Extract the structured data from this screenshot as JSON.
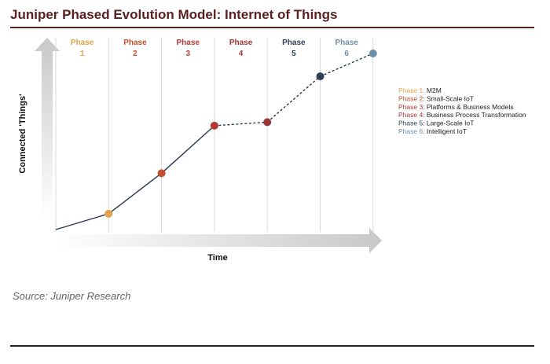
{
  "title": "Juniper Phased Evolution Model: Internet of Things",
  "source": "Source: Juniper Research",
  "colors": {
    "title": "#5a1f1f",
    "phase1": "#e0a24c",
    "phase2": "#c0502e",
    "phase3": "#b23a32",
    "phase4": "#9c3535",
    "phase5": "#2f3f55",
    "phase6": "#6e8fa6"
  },
  "chart_data": {
    "type": "line",
    "xlabel": "Time",
    "ylabel": "Connected 'Things'",
    "grid": true,
    "legend_position": "right",
    "phases": [
      {
        "label": "Phase",
        "number": "1",
        "legend_prefix": "Phase 1:",
        "legend_name": "M2M",
        "color": "#e0a24c"
      },
      {
        "label": "Phase",
        "number": "2",
        "legend_prefix": "Phase 2:",
        "legend_name": "Small-Scale IoT",
        "color": "#c0502e"
      },
      {
        "label": "Phase",
        "number": "3",
        "legend_prefix": "Phase 3:",
        "legend_name": "Platforms & Business Models",
        "color": "#b23a32"
      },
      {
        "label": "Phase",
        "number": "4",
        "legend_prefix": "Phase 4:",
        "legend_name": "Business Process Transformation",
        "color": "#9c3535"
      },
      {
        "label": "Phase",
        "number": "5",
        "legend_prefix": "Phase 5:",
        "legend_name": "Large-Scale IoT",
        "color": "#2f3f55"
      },
      {
        "label": "Phase",
        "number": "6",
        "legend_prefix": "Phase 6:",
        "legend_name": "Intelligent IoT",
        "color": "#6e8fa6"
      }
    ],
    "x": [
      0,
      1,
      2,
      3,
      4,
      5,
      6
    ],
    "y": [
      0,
      0.09,
      0.32,
      0.59,
      0.61,
      0.87,
      1.0
    ],
    "solid_until_index": 3,
    "marker_color_index": [
      null,
      0,
      1,
      2,
      3,
      4,
      5
    ]
  }
}
